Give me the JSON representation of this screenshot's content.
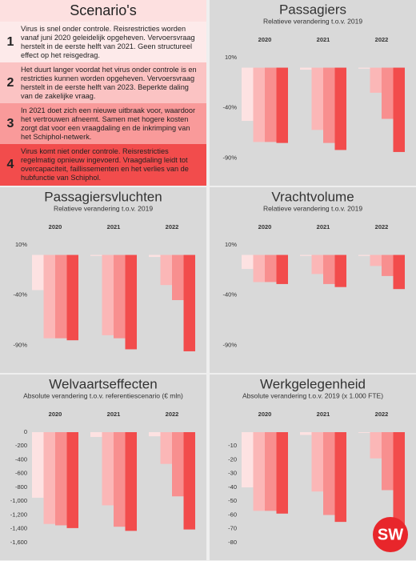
{
  "scenarios_title": "Scenario's",
  "scenarios": [
    {
      "number": "1",
      "text": "Virus is snel onder controle. Reisrestricties worden vanaf juni 2020 geleidelijk opgeheven. Vervoersvraag herstelt in de eerste helft van 2021. Geen structureel effect op het reisgedrag."
    },
    {
      "number": "2",
      "text": "Het duurt langer voordat het virus onder controle is en restricties kunnen worden opgeheven. Vervoersvraag herstelt in de eerste helft van 2023. Beperkte daling van de zakelijke vraag."
    },
    {
      "number": "3",
      "text": "In 2021 doet zich een nieuwe uitbraak voor, waardoor het vertrouwen afneemt. Samen met hogere kosten zorgt dat voor een vraagdaling en de inkrimping van het Schiphol-netwerk."
    },
    {
      "number": "4",
      "text": "Virus komt niet onder controle. Reisrestricties regelmatig opnieuw ingevoerd. Vraagdaling leidt tot overcapaciteit, faillissementen en het verlies van de hubfunctie van Schiphol."
    }
  ],
  "logo": "SW",
  "chart_data": [
    {
      "type": "bar",
      "title": "Passagiers",
      "subtitle": "Relatieve verandering t.o.v. 2019",
      "categories": [
        "2020",
        "2021",
        "2022"
      ],
      "series": [
        {
          "color": "#fde2e2",
          "values": [
            -53,
            -2,
            -1
          ]
        },
        {
          "color": "#fbb7b7",
          "values": [
            -74,
            -62,
            -25
          ]
        },
        {
          "color": "#f88f8f",
          "values": [
            -74,
            -75,
            -51
          ]
        },
        {
          "color": "#f24c4c",
          "values": [
            -75,
            -82,
            -84
          ]
        }
      ],
      "ylim": [
        -100,
        10
      ],
      "yticks": [
        {
          "value": 10,
          "label": "10%"
        },
        {
          "value": -40,
          "label": "-40%"
        },
        {
          "value": -90,
          "label": "-90%"
        }
      ]
    },
    {
      "type": "bar",
      "title": "Passagiersvluchten",
      "subtitle": "Relatieve verandering t.o.v. 2019",
      "categories": [
        "2020",
        "2021",
        "2022"
      ],
      "series": [
        {
          "color": "#fde2e2",
          "values": [
            -35,
            -1,
            -2
          ]
        },
        {
          "color": "#fbb7b7",
          "values": [
            -83,
            -80,
            -30
          ]
        },
        {
          "color": "#f88f8f",
          "values": [
            -83,
            -83,
            -45
          ]
        },
        {
          "color": "#f24c4c",
          "values": [
            -85,
            -94,
            -96
          ]
        }
      ],
      "ylim": [
        -100,
        10
      ],
      "yticks": [
        {
          "value": 10,
          "label": "10%"
        },
        {
          "value": -40,
          "label": "-40%"
        },
        {
          "value": -90,
          "label": "-90%"
        }
      ]
    },
    {
      "type": "bar",
      "title": "Vrachtvolume",
      "subtitle": "Relatieve verandering t.o.v. 2019",
      "categories": [
        "2020",
        "2021",
        "2022"
      ],
      "series": [
        {
          "color": "#fde2e2",
          "values": [
            -14,
            -1,
            -1
          ]
        },
        {
          "color": "#fbb7b7",
          "values": [
            -27,
            -19,
            -11
          ]
        },
        {
          "color": "#f88f8f",
          "values": [
            -27,
            -29,
            -21
          ]
        },
        {
          "color": "#f24c4c",
          "values": [
            -29,
            -32,
            -34
          ]
        }
      ],
      "ylim": [
        -100,
        10
      ],
      "yticks": [
        {
          "value": 10,
          "label": "10%"
        },
        {
          "value": -40,
          "label": "-40%"
        },
        {
          "value": -90,
          "label": "-90%"
        }
      ]
    },
    {
      "type": "bar",
      "title": "Welvaartseffecten",
      "subtitle": "Absolute verandering t.o.v. referentiescenario (€ mln)",
      "categories": [
        "2020",
        "2021",
        "2022"
      ],
      "series": [
        {
          "color": "#fde2e2",
          "values": [
            -950,
            -70,
            -60
          ]
        },
        {
          "color": "#fbb7b7",
          "values": [
            -1330,
            -1060,
            -460
          ]
        },
        {
          "color": "#f88f8f",
          "values": [
            -1350,
            -1370,
            -930
          ]
        },
        {
          "color": "#f24c4c",
          "values": [
            -1390,
            -1430,
            -1410
          ]
        }
      ],
      "ylim": [
        -1600,
        0
      ],
      "yticks": [
        0,
        -200,
        -400,
        -600,
        -800,
        {
          "value": -1000,
          "label": "-1,000"
        },
        {
          "value": -1200,
          "label": "-1,200"
        },
        {
          "value": -1400,
          "label": "-1,400"
        },
        {
          "value": -1600,
          "label": "-1,600"
        }
      ]
    },
    {
      "type": "bar",
      "title": "Werkgelegenheid",
      "subtitle": "Absolute verandering t.o.v. 2019 (x 1.000 FTE)",
      "categories": [
        "2020",
        "2021",
        "2022"
      ],
      "series": [
        {
          "color": "#fde2e2",
          "values": [
            -40,
            -2,
            -0.5
          ]
        },
        {
          "color": "#fbb7b7",
          "values": [
            -57,
            -43,
            -19
          ]
        },
        {
          "color": "#f88f8f",
          "values": [
            -57,
            -60,
            -42
          ]
        },
        {
          "color": "#f24c4c",
          "values": [
            -59,
            -65,
            -79
          ]
        }
      ],
      "ylim": [
        -80,
        0
      ],
      "yticks": [
        -10,
        -20,
        -30,
        -40,
        -50,
        -60,
        -70,
        -80
      ]
    }
  ]
}
